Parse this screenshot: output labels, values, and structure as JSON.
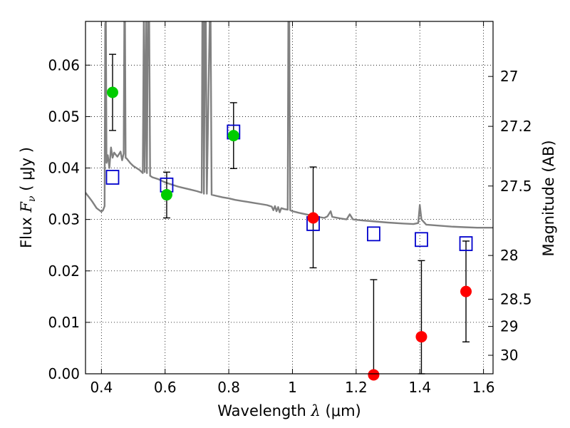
{
  "chart_data": {
    "type": "scatter",
    "title": "",
    "xlabel": "Wavelength",
    "xlabel_symbol": "λ",
    "xlabel_unit": "(μm)",
    "ylabel": "Flux",
    "ylabel_symbol": "F",
    "ylabel_subscript": "ν",
    "ylabel_unit": "( μJy )",
    "y2label": "Magnitude (AB)",
    "xlim": [
      0.35,
      1.63
    ],
    "ylim": [
      0.0,
      0.0685
    ],
    "grid": true,
    "grid_style": "dotted",
    "x_ticks": [
      0.4,
      0.6,
      0.8,
      1.0,
      1.2,
      1.4,
      1.6
    ],
    "x_tick_labels": [
      "0.4",
      "0.6",
      "0.8",
      "1",
      "1.2",
      "1.4",
      "1.6"
    ],
    "y_ticks": [
      0.0,
      0.01,
      0.02,
      0.03,
      0.04,
      0.05,
      0.06
    ],
    "y_tick_labels": [
      "0.00",
      "0.01",
      "0.02",
      "0.03",
      "0.04",
      "0.05",
      "0.06"
    ],
    "y2_ticks": [
      {
        "label": "27",
        "flux": 0.0578
      },
      {
        "label": "27.2",
        "flux": 0.0481
      },
      {
        "label": "27.5",
        "flux": 0.0365
      },
      {
        "label": "28",
        "flux": 0.023
      },
      {
        "label": "28.5",
        "flux": 0.0145
      },
      {
        "label": "29",
        "flux": 0.0092
      },
      {
        "label": "30",
        "flux": 0.0036
      }
    ],
    "series": [
      {
        "kind": "line",
        "color": "#808080",
        "points": [
          [
            0.35,
            0.0352
          ],
          [
            0.37,
            0.0336
          ],
          [
            0.385,
            0.0322
          ],
          [
            0.4,
            0.0315
          ],
          [
            0.405,
            0.0318
          ],
          [
            0.41,
            0.0326
          ],
          [
            0.412,
            0.068
          ],
          [
            0.414,
            0.0685
          ],
          [
            0.416,
            0.041
          ],
          [
            0.42,
            0.0425
          ],
          [
            0.425,
            0.04
          ],
          [
            0.43,
            0.044
          ],
          [
            0.435,
            0.042
          ],
          [
            0.44,
            0.043
          ],
          [
            0.45,
            0.0422
          ],
          [
            0.46,
            0.0432
          ],
          [
            0.465,
            0.0415
          ],
          [
            0.47,
            0.0428
          ],
          [
            0.472,
            0.0685
          ],
          [
            0.474,
            0.0685
          ],
          [
            0.476,
            0.042
          ],
          [
            0.48,
            0.0418
          ],
          [
            0.49,
            0.041
          ],
          [
            0.5,
            0.0404
          ],
          [
            0.51,
            0.04
          ],
          [
            0.52,
            0.0396
          ],
          [
            0.53,
            0.039
          ],
          [
            0.533,
            0.0685
          ],
          [
            0.536,
            0.0392
          ],
          [
            0.54,
            0.0685
          ],
          [
            0.543,
            0.039
          ],
          [
            0.546,
            0.0685
          ],
          [
            0.55,
            0.0685
          ],
          [
            0.553,
            0.0385
          ],
          [
            0.56,
            0.0382
          ],
          [
            0.58,
            0.0378
          ],
          [
            0.6,
            0.0372
          ],
          [
            0.62,
            0.0368
          ],
          [
            0.64,
            0.0364
          ],
          [
            0.66,
            0.0361
          ],
          [
            0.68,
            0.0358
          ],
          [
            0.7,
            0.0355
          ],
          [
            0.715,
            0.0352
          ],
          [
            0.717,
            0.0685
          ],
          [
            0.72,
            0.0685
          ],
          [
            0.722,
            0.035
          ],
          [
            0.725,
            0.0685
          ],
          [
            0.728,
            0.0685
          ],
          [
            0.731,
            0.035
          ],
          [
            0.74,
            0.0685
          ],
          [
            0.743,
            0.0685
          ],
          [
            0.746,
            0.0348
          ],
          [
            0.76,
            0.0346
          ],
          [
            0.78,
            0.0343
          ],
          [
            0.8,
            0.0341
          ],
          [
            0.82,
            0.0338
          ],
          [
            0.84,
            0.0336
          ],
          [
            0.86,
            0.0334
          ],
          [
            0.88,
            0.0332
          ],
          [
            0.9,
            0.033
          ],
          [
            0.92,
            0.0328
          ],
          [
            0.935,
            0.0325
          ],
          [
            0.94,
            0.0318
          ],
          [
            0.945,
            0.0326
          ],
          [
            0.95,
            0.0316
          ],
          [
            0.955,
            0.0324
          ],
          [
            0.96,
            0.0314
          ],
          [
            0.965,
            0.0322
          ],
          [
            0.975,
            0.032
          ],
          [
            0.985,
            0.0319
          ],
          [
            0.987,
            0.0685
          ],
          [
            0.99,
            0.0685
          ],
          [
            0.993,
            0.0318
          ],
          [
            1.0,
            0.0316
          ],
          [
            1.02,
            0.0313
          ],
          [
            1.05,
            0.0309
          ],
          [
            1.08,
            0.0305
          ],
          [
            1.1,
            0.0303
          ],
          [
            1.11,
            0.0306
          ],
          [
            1.12,
            0.0316
          ],
          [
            1.125,
            0.0305
          ],
          [
            1.15,
            0.0302
          ],
          [
            1.17,
            0.03
          ],
          [
            1.18,
            0.031
          ],
          [
            1.19,
            0.03
          ],
          [
            1.22,
            0.0298
          ],
          [
            1.26,
            0.0296
          ],
          [
            1.3,
            0.0294
          ],
          [
            1.35,
            0.0292
          ],
          [
            1.38,
            0.0291
          ],
          [
            1.395,
            0.0293
          ],
          [
            1.4,
            0.0328
          ],
          [
            1.405,
            0.03
          ],
          [
            1.42,
            0.029
          ],
          [
            1.46,
            0.0288
          ],
          [
            1.5,
            0.0286
          ],
          [
            1.54,
            0.0285
          ],
          [
            1.58,
            0.0284
          ],
          [
            1.63,
            0.0284
          ]
        ]
      },
      {
        "kind": "open-squares",
        "color": "#0000cc",
        "points": [
          [
            0.435,
            0.0382
          ],
          [
            0.605,
            0.0367
          ],
          [
            0.815,
            0.047
          ],
          [
            1.065,
            0.0292
          ],
          [
            1.255,
            0.0272
          ],
          [
            1.405,
            0.0261
          ],
          [
            1.545,
            0.0253
          ]
        ]
      },
      {
        "kind": "filled-circles",
        "color": "#00cc00",
        "points": [
          {
            "x": 0.435,
            "y": 0.0547,
            "lo": 0.0473,
            "hi": 0.0621
          },
          {
            "x": 0.605,
            "y": 0.0348,
            "lo": 0.0303,
            "hi": 0.0392
          },
          {
            "x": 0.815,
            "y": 0.0463,
            "lo": 0.0399,
            "hi": 0.0527
          }
        ]
      },
      {
        "kind": "filled-circles",
        "color": "#ff0000",
        "points": [
          {
            "x": 1.065,
            "y": 0.0303,
            "lo": 0.0206,
            "hi": 0.0402
          },
          {
            "x": 1.255,
            "y": -0.0002,
            "lo": 0.0,
            "hi": 0.0183
          },
          {
            "x": 1.405,
            "y": 0.0072,
            "lo": 0.0,
            "hi": 0.022
          },
          {
            "x": 1.545,
            "y": 0.016,
            "lo": 0.0062,
            "hi": 0.0258
          }
        ]
      }
    ]
  }
}
